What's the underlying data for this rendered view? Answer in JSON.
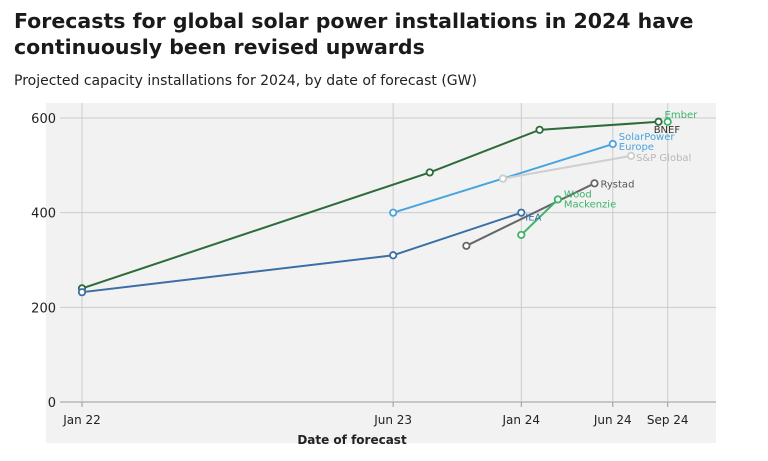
{
  "title": "Forecasts for global solar power installations in 2024 have continuously been revised upwards",
  "subtitle": "Projected capacity installations for 2024, by date of forecast (GW)",
  "colors": {
    "plot_bg": "#f2f2f2",
    "grid": "#cccccc",
    "axis_text": "#222222"
  },
  "chart_data": {
    "type": "line",
    "title": "Forecasts for global solar power installations in 2024 have continuously been revised upwards",
    "subtitle": "Projected capacity installations for 2024, by date of forecast (GW)",
    "xlabel": "Date of forecast",
    "ylabel": "",
    "x_unit": "months since Jan 2022",
    "xlim": [
      0,
      33
    ],
    "ylim": [
      0,
      600
    ],
    "grid": true,
    "x_ticks": [
      {
        "label": "Jan 22",
        "value": 0
      },
      {
        "label": "Jun 23",
        "value": 17
      },
      {
        "label": "Jan 24",
        "value": 24
      },
      {
        "label": "Jun 24",
        "value": 29
      },
      {
        "label": "Sep 24",
        "value": 32
      }
    ],
    "y_ticks": [
      0,
      200,
      400,
      600
    ],
    "series": [
      {
        "name": "Ember",
        "color": "#2e6b3a",
        "marker_color": "#2e6b3a",
        "points": [
          [
            0,
            240
          ],
          [
            19,
            485
          ],
          [
            25,
            575
          ],
          [
            31.5,
            592
          ]
        ],
        "label": "Ember",
        "label_color": "#3db36b"
      },
      {
        "name": "BNEF",
        "color": "#3db36b",
        "marker_color": "#3db36b",
        "points": [
          [
            32,
            592
          ]
        ],
        "label": "BNEF",
        "label_color": "#333333"
      },
      {
        "name": "SolarPower Europe",
        "color": "#4aa3df",
        "marker_color": "#4aa3df",
        "points": [
          [
            17,
            400
          ],
          [
            23,
            472
          ],
          [
            29,
            545
          ]
        ],
        "label": "SolarPower Europe",
        "label_lines": [
          "SolarPower",
          "Europe"
        ],
        "label_color": "#4aa3df"
      },
      {
        "name": "S&P Global",
        "color": "#cfcfcf",
        "marker_color": "#cfcfcf",
        "points": [
          [
            23,
            472
          ],
          [
            30,
            520
          ]
        ],
        "label": "S&P Global",
        "label_color": "#b8b8b8"
      },
      {
        "name": "IEA",
        "color": "#3a6fa6",
        "marker_color": "#3a6fa6",
        "points": [
          [
            0,
            232
          ],
          [
            17,
            310
          ],
          [
            24,
            400
          ]
        ],
        "label": "IEA",
        "label_color": "#3a6fa6"
      },
      {
        "name": "Rystad",
        "color": "#666666",
        "marker_color": "#666666",
        "points": [
          [
            21,
            330
          ],
          [
            28,
            462
          ]
        ],
        "label": "Rystad",
        "label_color": "#555555"
      },
      {
        "name": "Wood Mackenzie",
        "color": "#3db36b",
        "marker_color": "#3db36b",
        "points": [
          [
            24,
            353
          ],
          [
            26,
            428
          ]
        ],
        "label": "Wood Mackenzie",
        "label_lines": [
          "Wood",
          "Mackenzie"
        ],
        "label_color": "#3db36b"
      }
    ]
  }
}
